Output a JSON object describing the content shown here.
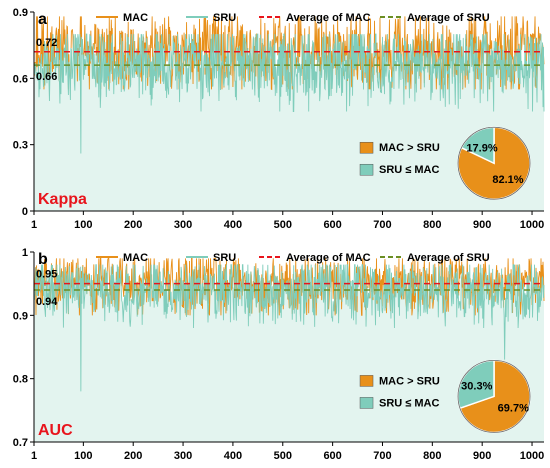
{
  "colors": {
    "mac": "#e8901a",
    "sru": "#7fcdbb",
    "sru_fill": "#e3f4ef",
    "avg_mac": "#e8141c",
    "avg_sru": "#6b8e23",
    "pie_mac": "#e8901a",
    "pie_sru": "#7fcdbb",
    "metric_label": "#e8141c"
  },
  "legend": {
    "mac": "MAC",
    "sru": "SRU",
    "avg_mac": "Average of MAC",
    "avg_sru": "Average of SRU"
  },
  "chart_data": [
    {
      "type": "line",
      "panel_letter": "a",
      "metric": "Kappa",
      "x_range": [
        1,
        1024
      ],
      "x_ticks": [
        1,
        100,
        200,
        300,
        400,
        500,
        600,
        700,
        800,
        900,
        1000
      ],
      "ylim": [
        0,
        0.9
      ],
      "y_ticks": [
        0,
        0.3,
        0.6,
        0.9
      ],
      "y_tick_labels": [
        "0",
        "0.3",
        "0.6",
        "0.9"
      ],
      "series": [
        {
          "name": "MAC",
          "mean": 0.72,
          "typical_range": [
            0.55,
            0.88
          ]
        },
        {
          "name": "SRU",
          "mean": 0.66,
          "typical_range": [
            0.45,
            0.8
          ],
          "notable_dips": [
            {
              "x": 95,
              "y": 0.26
            }
          ]
        }
      ],
      "averages": {
        "MAC": 0.72,
        "SRU": 0.66
      },
      "avg_labels": {
        "MAC": "0.72",
        "SRU": "0.66"
      },
      "pie": {
        "slices": [
          {
            "label": "MAC > SRU",
            "value": 82.1,
            "text": "82.1%"
          },
          {
            "label": "SRU ≤ MAC",
            "value": 17.9,
            "text": "17.9%"
          }
        ]
      }
    },
    {
      "type": "line",
      "panel_letter": "b",
      "metric": "AUC",
      "x_range": [
        1,
        1024
      ],
      "x_ticks": [
        1,
        100,
        200,
        300,
        400,
        500,
        600,
        700,
        800,
        900,
        1000
      ],
      "ylim": [
        0.7,
        1.0
      ],
      "y_ticks": [
        0.7,
        0.8,
        0.9,
        1.0
      ],
      "y_tick_labels": [
        "0.7",
        "0.8",
        "0.9",
        "1"
      ],
      "series": [
        {
          "name": "MAC",
          "mean": 0.95,
          "typical_range": [
            0.9,
            0.99
          ]
        },
        {
          "name": "SRU",
          "mean": 0.94,
          "typical_range": [
            0.88,
            0.98
          ],
          "notable_dips": [
            {
              "x": 95,
              "y": 0.78
            },
            {
              "x": 945,
              "y": 0.83
            }
          ]
        }
      ],
      "averages": {
        "MAC": 0.95,
        "SRU": 0.94
      },
      "avg_labels": {
        "MAC": "0.95",
        "SRU": "0.94"
      },
      "pie": {
        "slices": [
          {
            "label": "MAC > SRU",
            "value": 69.7,
            "text": "69.7%"
          },
          {
            "label": "SRU ≤ MAC",
            "value": 30.3,
            "text": "30.3%"
          }
        ]
      }
    }
  ]
}
